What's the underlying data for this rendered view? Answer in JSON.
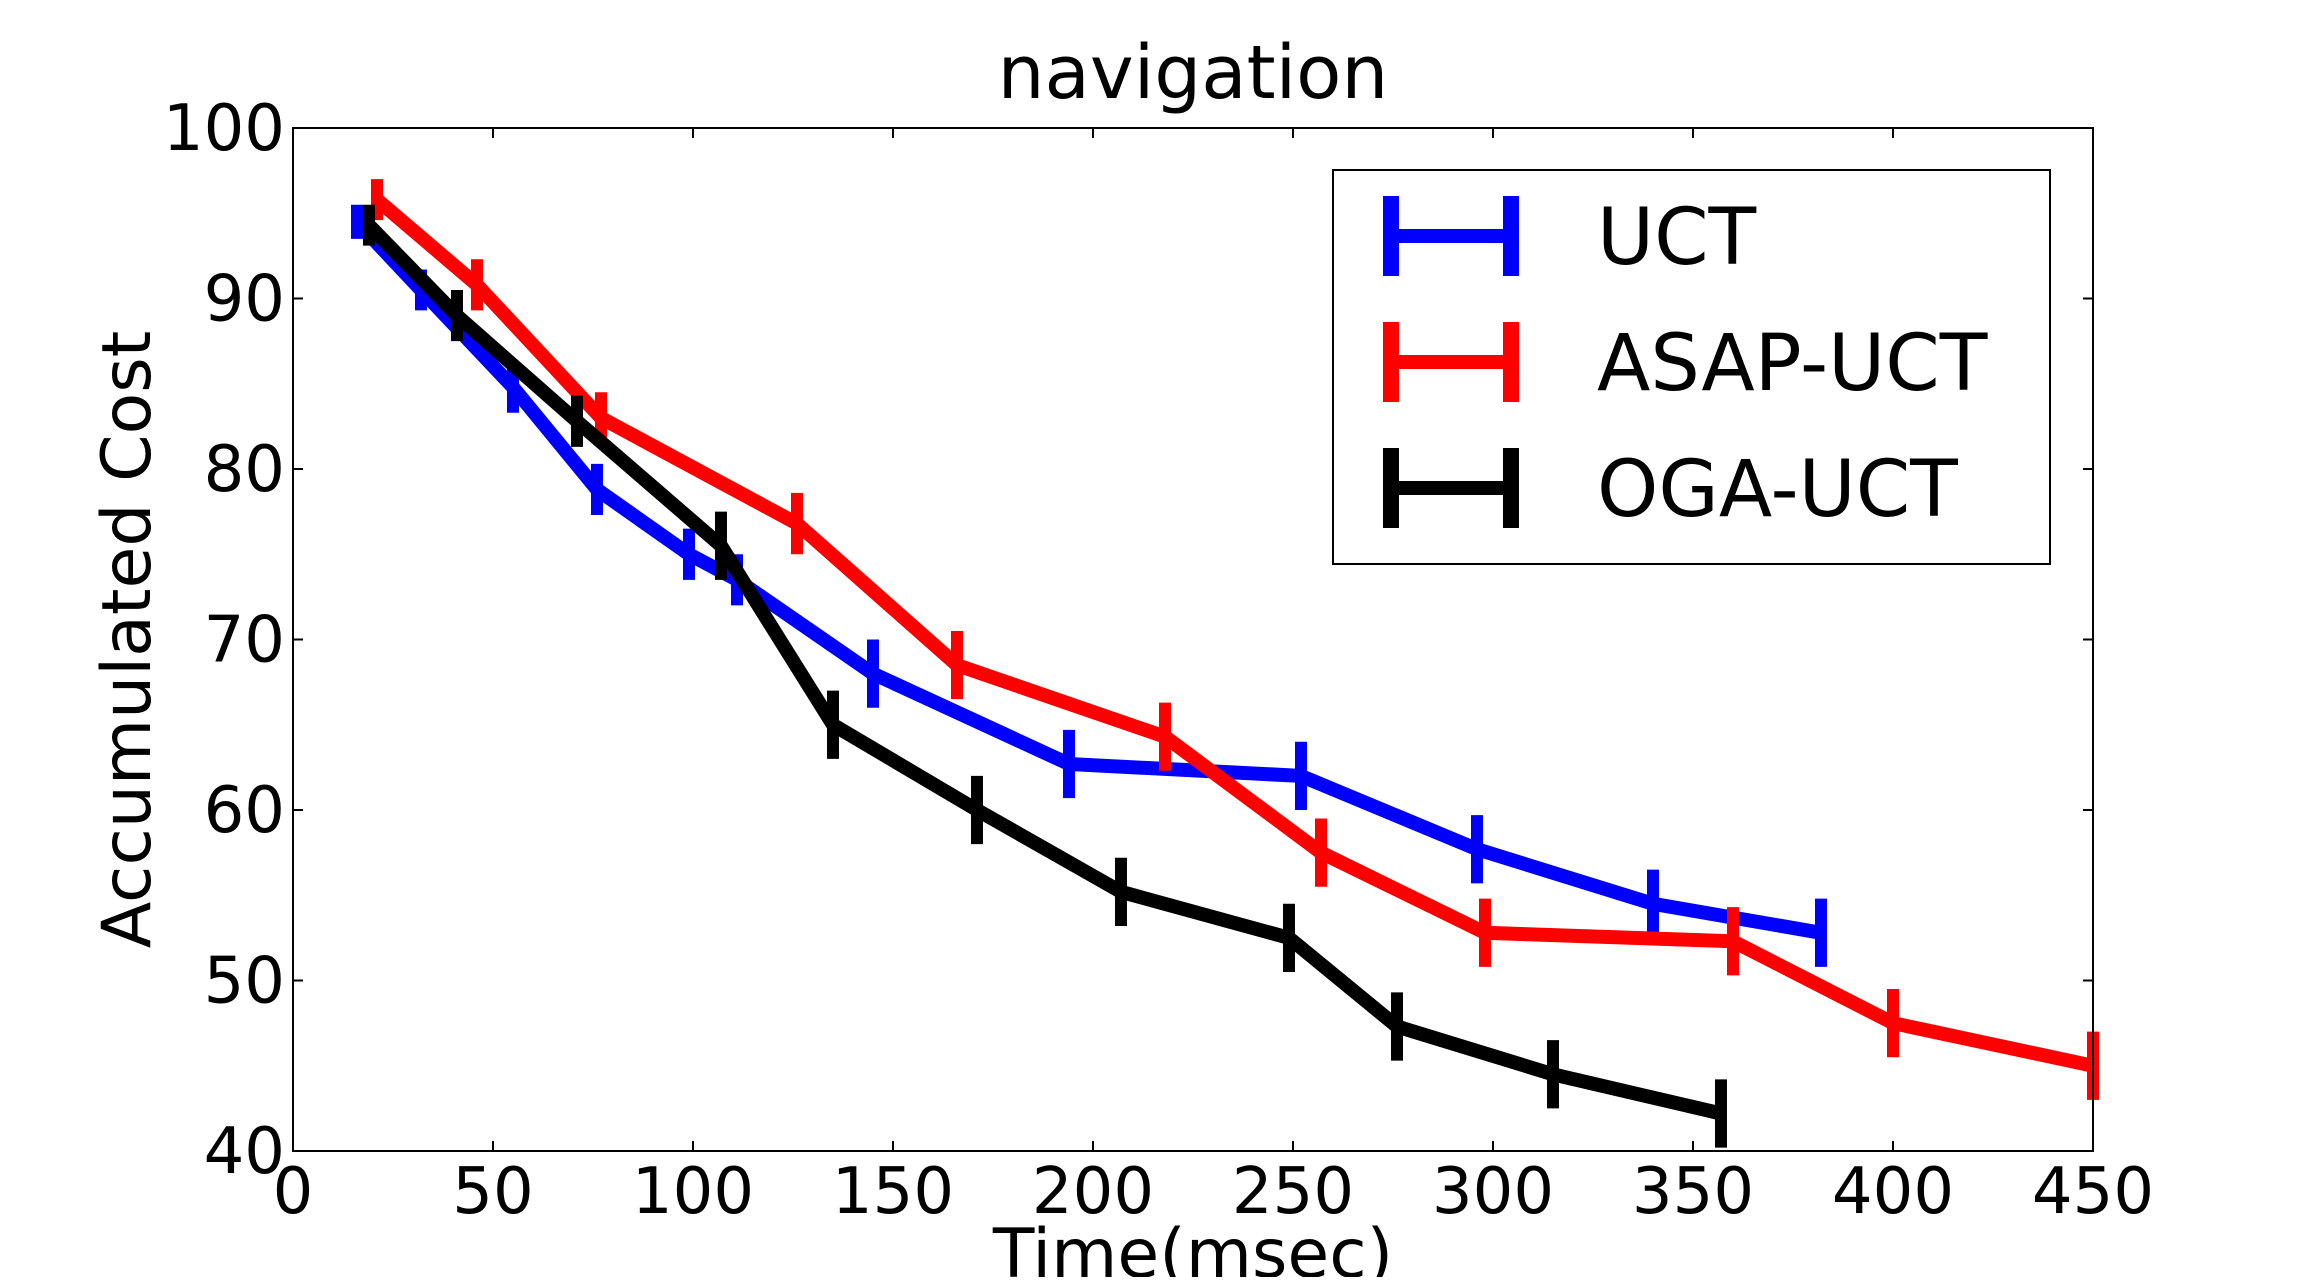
{
  "chart_data": {
    "type": "line",
    "title": "navigation",
    "xlabel": "Time(msec)",
    "ylabel": "Accumulated Cost",
    "xlim": [
      0,
      450
    ],
    "ylim": [
      40,
      100
    ],
    "xticks": [
      0,
      50,
      100,
      150,
      200,
      250,
      300,
      350,
      400,
      450
    ],
    "yticks": [
      40,
      50,
      60,
      70,
      80,
      90,
      100
    ],
    "grid": false,
    "legend_position": "top-right",
    "error_bars": "vertical",
    "series": [
      {
        "name": "UCT",
        "color": "#0000ff",
        "x": [
          16,
          32,
          55,
          76,
          99,
          111,
          145,
          194,
          252,
          296,
          340,
          382
        ],
        "y": [
          94.5,
          90.5,
          84.8,
          78.8,
          75.0,
          73.5,
          68.0,
          62.7,
          62.0,
          57.7,
          54.5,
          52.8
        ],
        "err": [
          1.0,
          1.2,
          1.5,
          1.5,
          1.5,
          1.5,
          2.0,
          2.0,
          2.0,
          2.0,
          2.0,
          2.0
        ]
      },
      {
        "name": "ASAP-UCT",
        "color": "#ff0000",
        "x": [
          21,
          46,
          77,
          126,
          166,
          218,
          257,
          298,
          360,
          400,
          450
        ],
        "y": [
          95.8,
          90.8,
          83.0,
          76.8,
          68.5,
          64.3,
          57.5,
          52.8,
          52.3,
          47.5,
          45.0
        ],
        "err": [
          1.2,
          1.5,
          1.5,
          1.8,
          2.0,
          2.0,
          2.0,
          2.0,
          2.0,
          2.0,
          2.0
        ]
      },
      {
        "name": "OGA-UCT",
        "color": "#000000",
        "x": [
          19,
          41,
          71,
          107,
          135,
          171,
          207,
          249,
          276,
          315,
          357
        ],
        "y": [
          94.3,
          89.0,
          82.8,
          75.5,
          65.0,
          60.0,
          55.2,
          52.5,
          47.3,
          44.5,
          42.2
        ],
        "err": [
          1.2,
          1.5,
          1.5,
          2.0,
          2.0,
          2.0,
          2.0,
          2.0,
          2.0,
          2.0,
          2.0
        ]
      }
    ]
  }
}
